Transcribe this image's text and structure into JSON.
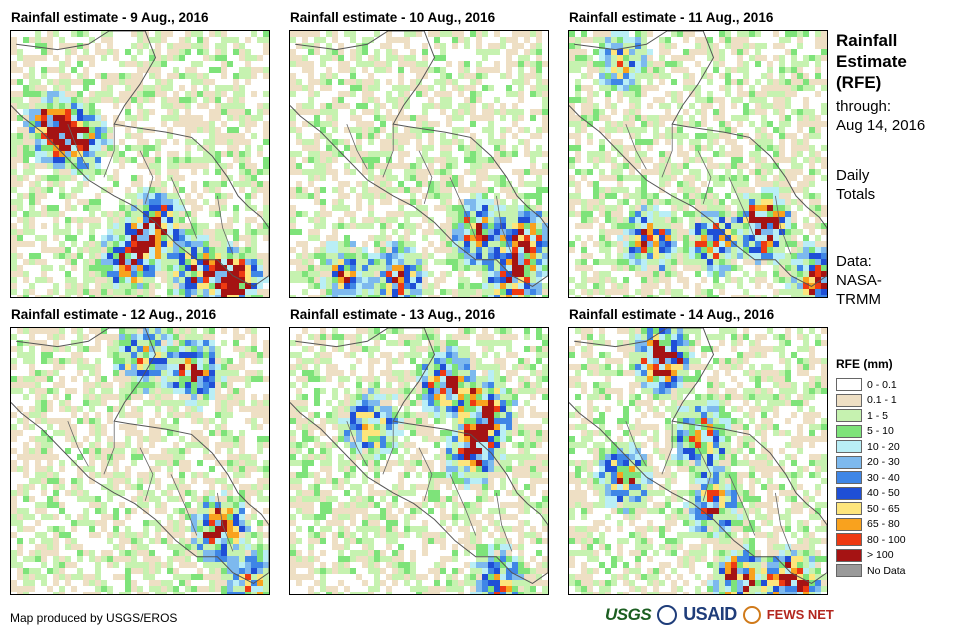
{
  "panels": [
    {
      "title": "Rainfall estimate - 9 Aug., 2016",
      "day": 9
    },
    {
      "title": "Rainfall estimate - 10 Aug., 2016",
      "day": 10
    },
    {
      "title": "Rainfall estimate - 11 Aug., 2016",
      "day": 11
    },
    {
      "title": "Rainfall estimate - 12 Aug., 2016",
      "day": 12
    },
    {
      "title": "Rainfall estimate - 13 Aug., 2016",
      "day": 13
    },
    {
      "title": "Rainfall estimate - 14 Aug., 2016",
      "day": 14
    }
  ],
  "side": {
    "title_line1": "Rainfall",
    "title_line2": "Estimate",
    "title_line3": "(RFE)",
    "through_line1": "through:",
    "through_line2": "Aug 14, 2016",
    "daily_line1": "Daily",
    "daily_line2": "Totals",
    "data_line1": "Data:",
    "data_line2": "NASA-",
    "data_line3": "TRMM"
  },
  "legend": {
    "title": "RFE (mm)",
    "items": [
      {
        "label": "0 - 0.1",
        "color": "#ffffff"
      },
      {
        "label": "0.1 - 1",
        "color": "#eedfc4"
      },
      {
        "label": "1 - 5",
        "color": "#c6f2b0"
      },
      {
        "label": "5 - 10",
        "color": "#7ee37a"
      },
      {
        "label": "10 - 20",
        "color": "#b9eef6"
      },
      {
        "label": "20 - 30",
        "color": "#7db9ee"
      },
      {
        "label": "30 - 40",
        "color": "#3f86e6"
      },
      {
        "label": "40 - 50",
        "color": "#1f4fd6"
      },
      {
        "label": "50 - 65",
        "color": "#fde57c"
      },
      {
        "label": "65 - 80",
        "color": "#f9a21e"
      },
      {
        "label": "80 - 100",
        "color": "#ee3a12"
      },
      {
        "label": "> 100",
        "color": "#a51313"
      },
      {
        "label": "No Data",
        "color": "#9a9a9a"
      }
    ]
  },
  "credit": "Map produced by USGS/EROS",
  "logos": {
    "usgs": "USGS",
    "usaid": "USAID",
    "fews": "FEWS NET"
  }
}
